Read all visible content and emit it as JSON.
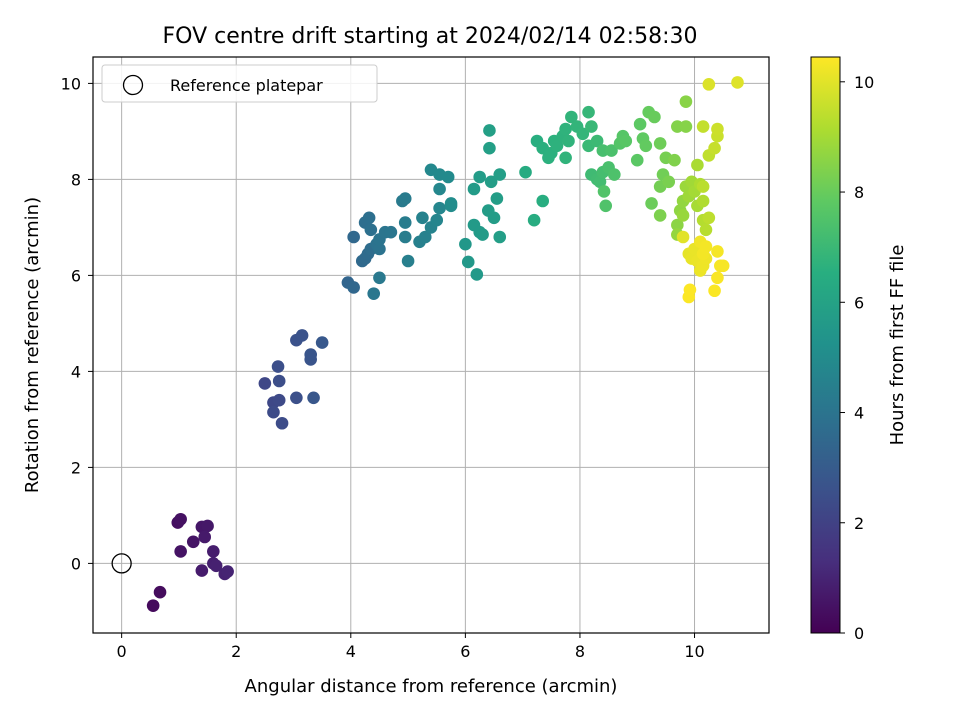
{
  "chart_data": {
    "type": "scatter",
    "title": "FOV centre drift starting at 2024/02/14 02:58:30",
    "xlabel": "Angular distance from reference (arcmin)",
    "ylabel": "Rotation from reference (arcmin)",
    "xlim": [
      -0.5,
      11.3
    ],
    "ylim": [
      -1.45,
      10.55
    ],
    "xticks": [
      0,
      2,
      4,
      6,
      8,
      10
    ],
    "yticks": [
      0,
      2,
      4,
      6,
      8,
      10
    ],
    "grid": true,
    "legend": {
      "location": "upper-left",
      "entries": [
        {
          "label": "Reference platepar",
          "marker": "open-circle"
        }
      ]
    },
    "reference_point": {
      "x": 0,
      "y": 0
    },
    "colorbar": {
      "label": "Hours from first FF file",
      "range": [
        0,
        10.45
      ],
      "ticks": [
        0,
        2,
        4,
        6,
        8,
        10
      ],
      "colormap": "viridis"
    },
    "points": [
      {
        "x": 0.55,
        "y": -0.88,
        "c": 0.25
      },
      {
        "x": 0.67,
        "y": -0.6,
        "c": 0.3
      },
      {
        "x": 0.98,
        "y": 0.85,
        "c": 0.4
      },
      {
        "x": 1.03,
        "y": 0.92,
        "c": 0.45
      },
      {
        "x": 1.03,
        "y": 0.25,
        "c": 0.5
      },
      {
        "x": 1.25,
        "y": 0.45,
        "c": 0.55
      },
      {
        "x": 1.4,
        "y": 0.76,
        "c": 0.6
      },
      {
        "x": 1.5,
        "y": 0.78,
        "c": 0.65
      },
      {
        "x": 1.45,
        "y": 0.55,
        "c": 0.7
      },
      {
        "x": 1.4,
        "y": -0.15,
        "c": 0.75
      },
      {
        "x": 1.6,
        "y": 0.25,
        "c": 0.8
      },
      {
        "x": 1.6,
        "y": 0.0,
        "c": 0.85
      },
      {
        "x": 1.65,
        "y": -0.05,
        "c": 0.9
      },
      {
        "x": 1.8,
        "y": -0.22,
        "c": 0.95
      },
      {
        "x": 1.85,
        "y": -0.17,
        "c": 1.0
      },
      {
        "x": 2.5,
        "y": 3.75,
        "c": 2.2
      },
      {
        "x": 2.65,
        "y": 3.35,
        "c": 2.25
      },
      {
        "x": 2.75,
        "y": 3.4,
        "c": 2.3
      },
      {
        "x": 2.65,
        "y": 3.15,
        "c": 2.35
      },
      {
        "x": 2.8,
        "y": 2.92,
        "c": 2.4
      },
      {
        "x": 2.75,
        "y": 3.8,
        "c": 2.45
      },
      {
        "x": 2.73,
        "y": 4.1,
        "c": 2.5
      },
      {
        "x": 3.05,
        "y": 3.45,
        "c": 2.55
      },
      {
        "x": 3.05,
        "y": 4.65,
        "c": 2.6
      },
      {
        "x": 3.15,
        "y": 4.75,
        "c": 2.65
      },
      {
        "x": 3.3,
        "y": 4.25,
        "c": 2.7
      },
      {
        "x": 3.3,
        "y": 4.35,
        "c": 2.75
      },
      {
        "x": 3.35,
        "y": 3.45,
        "c": 2.8
      },
      {
        "x": 3.5,
        "y": 4.6,
        "c": 2.85
      },
      {
        "x": 3.95,
        "y": 5.85,
        "c": 3.4
      },
      {
        "x": 4.05,
        "y": 5.75,
        "c": 3.45
      },
      {
        "x": 4.05,
        "y": 6.8,
        "c": 3.5
      },
      {
        "x": 4.2,
        "y": 6.3,
        "c": 3.55
      },
      {
        "x": 4.25,
        "y": 6.35,
        "c": 3.6
      },
      {
        "x": 4.3,
        "y": 6.45,
        "c": 3.65
      },
      {
        "x": 4.35,
        "y": 6.55,
        "c": 3.7
      },
      {
        "x": 4.25,
        "y": 7.1,
        "c": 3.75
      },
      {
        "x": 4.32,
        "y": 7.2,
        "c": 3.8
      },
      {
        "x": 4.35,
        "y": 6.95,
        "c": 3.85
      },
      {
        "x": 4.45,
        "y": 6.65,
        "c": 3.9
      },
      {
        "x": 4.5,
        "y": 6.55,
        "c": 3.95
      },
      {
        "x": 4.5,
        "y": 6.75,
        "c": 4.0
      },
      {
        "x": 4.6,
        "y": 6.9,
        "c": 4.05
      },
      {
        "x": 4.7,
        "y": 6.9,
        "c": 4.1
      },
      {
        "x": 4.4,
        "y": 5.62,
        "c": 4.15
      },
      {
        "x": 4.5,
        "y": 5.95,
        "c": 4.2
      },
      {
        "x": 4.9,
        "y": 7.55,
        "c": 4.25
      },
      {
        "x": 4.95,
        "y": 7.6,
        "c": 4.3
      },
      {
        "x": 4.95,
        "y": 7.1,
        "c": 4.35
      },
      {
        "x": 4.95,
        "y": 6.8,
        "c": 4.4
      },
      {
        "x": 5.0,
        "y": 6.3,
        "c": 4.45
      },
      {
        "x": 5.2,
        "y": 6.7,
        "c": 4.5
      },
      {
        "x": 5.3,
        "y": 6.8,
        "c": 4.55
      },
      {
        "x": 5.25,
        "y": 7.2,
        "c": 4.6
      },
      {
        "x": 5.4,
        "y": 7.0,
        "c": 4.65
      },
      {
        "x": 5.5,
        "y": 7.15,
        "c": 4.7
      },
      {
        "x": 5.55,
        "y": 7.4,
        "c": 4.75
      },
      {
        "x": 5.55,
        "y": 7.8,
        "c": 4.8
      },
      {
        "x": 5.4,
        "y": 8.2,
        "c": 4.85
      },
      {
        "x": 5.55,
        "y": 8.1,
        "c": 4.9
      },
      {
        "x": 5.7,
        "y": 8.05,
        "c": 4.95
      },
      {
        "x": 5.75,
        "y": 7.45,
        "c": 5.0
      },
      {
        "x": 5.75,
        "y": 7.5,
        "c": 5.05
      },
      {
        "x": 6.0,
        "y": 6.65,
        "c": 5.5
      },
      {
        "x": 6.05,
        "y": 6.28,
        "c": 5.55
      },
      {
        "x": 6.2,
        "y": 6.02,
        "c": 5.6
      },
      {
        "x": 6.15,
        "y": 7.05,
        "c": 5.62
      },
      {
        "x": 6.25,
        "y": 6.9,
        "c": 5.64
      },
      {
        "x": 6.3,
        "y": 6.85,
        "c": 5.66
      },
      {
        "x": 6.15,
        "y": 7.8,
        "c": 5.68
      },
      {
        "x": 6.25,
        "y": 8.05,
        "c": 5.7
      },
      {
        "x": 6.4,
        "y": 7.35,
        "c": 5.72
      },
      {
        "x": 6.5,
        "y": 7.2,
        "c": 5.74
      },
      {
        "x": 6.55,
        "y": 7.6,
        "c": 5.76
      },
      {
        "x": 6.45,
        "y": 7.95,
        "c": 5.78
      },
      {
        "x": 6.6,
        "y": 8.1,
        "c": 5.8
      },
      {
        "x": 6.6,
        "y": 6.8,
        "c": 5.82
      },
      {
        "x": 6.42,
        "y": 8.65,
        "c": 5.84
      },
      {
        "x": 6.42,
        "y": 9.02,
        "c": 5.86
      },
      {
        "x": 7.05,
        "y": 8.15,
        "c": 6.4
      },
      {
        "x": 7.2,
        "y": 7.15,
        "c": 6.45
      },
      {
        "x": 7.35,
        "y": 7.55,
        "c": 6.5
      },
      {
        "x": 7.25,
        "y": 8.8,
        "c": 6.55
      },
      {
        "x": 7.35,
        "y": 8.65,
        "c": 6.6
      },
      {
        "x": 7.45,
        "y": 8.45,
        "c": 6.62
      },
      {
        "x": 7.5,
        "y": 8.55,
        "c": 6.64
      },
      {
        "x": 7.55,
        "y": 8.8,
        "c": 6.66
      },
      {
        "x": 7.6,
        "y": 8.7,
        "c": 6.68
      },
      {
        "x": 7.7,
        "y": 8.9,
        "c": 6.7
      },
      {
        "x": 7.75,
        "y": 9.05,
        "c": 6.72
      },
      {
        "x": 7.8,
        "y": 8.8,
        "c": 6.74
      },
      {
        "x": 7.75,
        "y": 8.45,
        "c": 6.76
      },
      {
        "x": 7.85,
        "y": 9.3,
        "c": 6.78
      },
      {
        "x": 7.95,
        "y": 9.1,
        "c": 6.8
      },
      {
        "x": 8.05,
        "y": 8.95,
        "c": 6.85
      },
      {
        "x": 8.15,
        "y": 9.4,
        "c": 6.9
      },
      {
        "x": 8.2,
        "y": 9.1,
        "c": 6.95
      },
      {
        "x": 8.15,
        "y": 8.7,
        "c": 7.0
      },
      {
        "x": 8.3,
        "y": 8.8,
        "c": 7.05
      },
      {
        "x": 8.2,
        "y": 8.1,
        "c": 7.1
      },
      {
        "x": 8.3,
        "y": 8.0,
        "c": 7.15
      },
      {
        "x": 8.35,
        "y": 7.95,
        "c": 7.2
      },
      {
        "x": 8.4,
        "y": 8.15,
        "c": 7.25
      },
      {
        "x": 8.4,
        "y": 8.6,
        "c": 7.3
      },
      {
        "x": 8.5,
        "y": 8.25,
        "c": 7.35
      },
      {
        "x": 8.55,
        "y": 8.6,
        "c": 7.4
      },
      {
        "x": 8.6,
        "y": 8.1,
        "c": 7.45
      },
      {
        "x": 8.45,
        "y": 7.45,
        "c": 7.5
      },
      {
        "x": 8.42,
        "y": 7.75,
        "c": 7.55
      },
      {
        "x": 8.7,
        "y": 8.75,
        "c": 7.6
      },
      {
        "x": 8.75,
        "y": 8.9,
        "c": 7.65
      },
      {
        "x": 8.8,
        "y": 8.8,
        "c": 7.7
      },
      {
        "x": 9.0,
        "y": 8.4,
        "c": 7.75
      },
      {
        "x": 9.05,
        "y": 9.15,
        "c": 7.8
      },
      {
        "x": 9.1,
        "y": 8.85,
        "c": 7.85
      },
      {
        "x": 9.15,
        "y": 8.7,
        "c": 7.9
      },
      {
        "x": 9.2,
        "y": 9.4,
        "c": 7.95
      },
      {
        "x": 9.3,
        "y": 9.3,
        "c": 8.0
      },
      {
        "x": 9.25,
        "y": 7.5,
        "c": 8.05
      },
      {
        "x": 9.4,
        "y": 8.75,
        "c": 8.1
      },
      {
        "x": 9.45,
        "y": 8.1,
        "c": 8.15
      },
      {
        "x": 9.4,
        "y": 7.85,
        "c": 8.2
      },
      {
        "x": 9.5,
        "y": 8.45,
        "c": 8.25
      },
      {
        "x": 9.55,
        "y": 7.95,
        "c": 8.3
      },
      {
        "x": 9.4,
        "y": 7.25,
        "c": 8.35
      },
      {
        "x": 9.65,
        "y": 8.4,
        "c": 8.4
      },
      {
        "x": 9.7,
        "y": 9.1,
        "c": 8.45
      },
      {
        "x": 9.85,
        "y": 9.1,
        "c": 8.5
      },
      {
        "x": 9.85,
        "y": 9.62,
        "c": 8.55
      },
      {
        "x": 9.7,
        "y": 7.05,
        "c": 8.6
      },
      {
        "x": 9.75,
        "y": 7.35,
        "c": 8.65
      },
      {
        "x": 9.8,
        "y": 7.55,
        "c": 8.7
      },
      {
        "x": 9.7,
        "y": 6.85,
        "c": 8.75
      },
      {
        "x": 9.8,
        "y": 7.25,
        "c": 8.8
      },
      {
        "x": 9.85,
        "y": 7.85,
        "c": 8.85
      },
      {
        "x": 9.9,
        "y": 7.65,
        "c": 8.9
      },
      {
        "x": 9.95,
        "y": 7.95,
        "c": 8.95
      },
      {
        "x": 10.0,
        "y": 7.75,
        "c": 9.0
      },
      {
        "x": 10.05,
        "y": 7.45,
        "c": 9.05
      },
      {
        "x": 10.05,
        "y": 8.3,
        "c": 9.1
      },
      {
        "x": 10.1,
        "y": 7.9,
        "c": 9.15
      },
      {
        "x": 10.15,
        "y": 7.55,
        "c": 9.2
      },
      {
        "x": 10.15,
        "y": 7.15,
        "c": 9.25
      },
      {
        "x": 10.2,
        "y": 6.95,
        "c": 9.3
      },
      {
        "x": 10.15,
        "y": 7.85,
        "c": 9.35
      },
      {
        "x": 10.25,
        "y": 7.2,
        "c": 9.4
      },
      {
        "x": 10.25,
        "y": 8.5,
        "c": 9.45
      },
      {
        "x": 10.15,
        "y": 9.1,
        "c": 9.5
      },
      {
        "x": 10.35,
        "y": 8.65,
        "c": 9.55
      },
      {
        "x": 10.4,
        "y": 8.9,
        "c": 9.6
      },
      {
        "x": 10.4,
        "y": 9.05,
        "c": 9.65
      },
      {
        "x": 10.25,
        "y": 9.98,
        "c": 9.9
      },
      {
        "x": 10.75,
        "y": 10.02,
        "c": 9.95
      },
      {
        "x": 9.8,
        "y": 6.8,
        "c": 10.0
      },
      {
        "x": 9.9,
        "y": 6.45,
        "c": 10.05
      },
      {
        "x": 9.95,
        "y": 6.35,
        "c": 10.1
      },
      {
        "x": 10.0,
        "y": 6.55,
        "c": 10.12
      },
      {
        "x": 10.05,
        "y": 6.3,
        "c": 10.15
      },
      {
        "x": 10.1,
        "y": 6.1,
        "c": 10.18
      },
      {
        "x": 10.15,
        "y": 6.2,
        "c": 10.2
      },
      {
        "x": 10.2,
        "y": 6.35,
        "c": 10.22
      },
      {
        "x": 10.1,
        "y": 6.7,
        "c": 10.25
      },
      {
        "x": 10.15,
        "y": 6.45,
        "c": 10.28
      },
      {
        "x": 10.2,
        "y": 6.6,
        "c": 10.3
      },
      {
        "x": 10.4,
        "y": 6.5,
        "c": 10.32
      },
      {
        "x": 10.45,
        "y": 6.2,
        "c": 10.34
      },
      {
        "x": 10.5,
        "y": 6.2,
        "c": 10.36
      },
      {
        "x": 10.4,
        "y": 5.95,
        "c": 10.38
      },
      {
        "x": 10.35,
        "y": 5.68,
        "c": 10.4
      },
      {
        "x": 9.9,
        "y": 5.55,
        "c": 10.42
      },
      {
        "x": 9.92,
        "y": 5.7,
        "c": 10.44
      }
    ]
  }
}
